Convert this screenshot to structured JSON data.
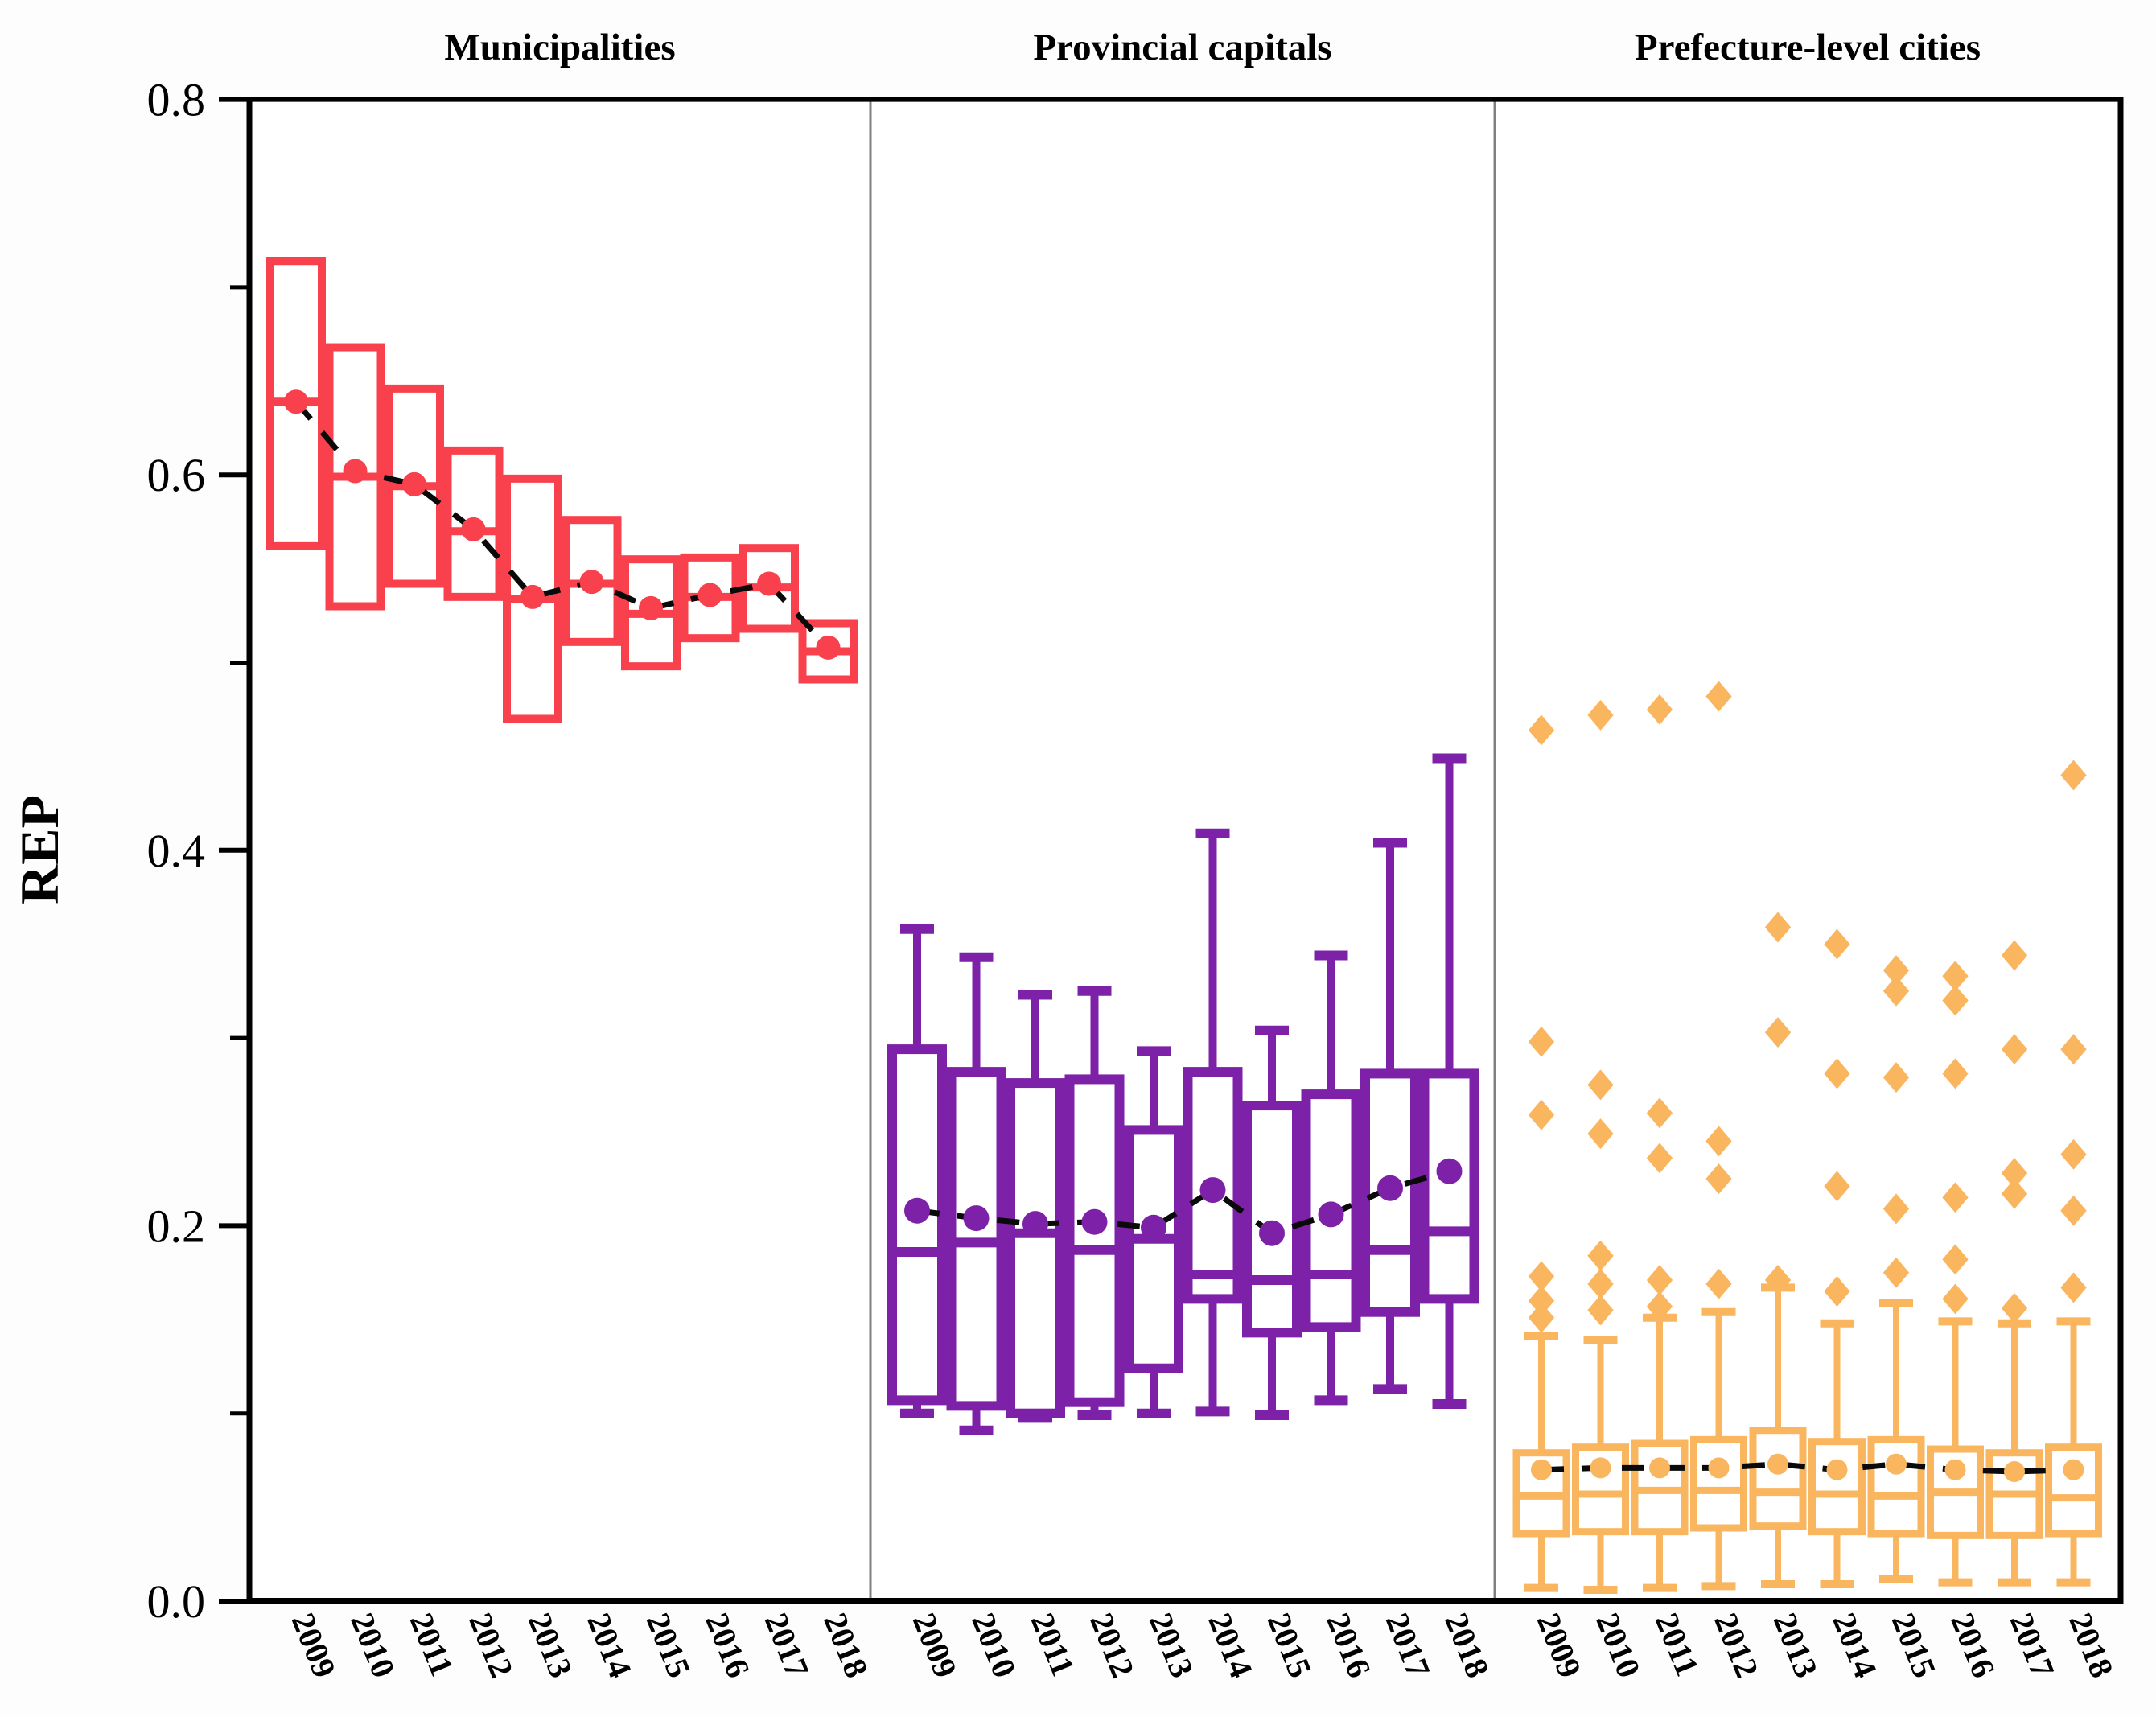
{
  "figure": {
    "ylabel": "REP",
    "panel_titles": [
      "Municipalities",
      "Provincial capitals",
      "Prefecture-level cities"
    ]
  },
  "chart_data": {
    "type": "boxplot",
    "title": "",
    "xlabel": "",
    "ylabel": "REP",
    "ylim": [
      0.0,
      0.8
    ],
    "y_major_ticks": [
      "0.0",
      "0.2",
      "0.4",
      "0.6",
      "0.8"
    ],
    "y_minor_ticks": [
      0.1,
      0.3,
      0.5,
      0.7
    ],
    "categories": [
      "2009",
      "2010",
      "2011",
      "2012",
      "2013",
      "2014",
      "2015",
      "2016",
      "2017",
      "2018"
    ],
    "legend_position": "none",
    "grid": false,
    "mean_connector_style": "dashed-black-line-through-mean-dots",
    "colors": {
      "municipalities": "#f8414d",
      "provincial_capitals": "#7d22a8",
      "prefecture_level_cities": "#fab55f",
      "connector": "#0a0a0a",
      "axis": "#000000",
      "panel_divider": "#808080"
    },
    "panels": [
      {
        "title": "Municipalities",
        "color": "#f8414d",
        "has_whiskers": false,
        "series": [
          {
            "year": "2009",
            "q1": 0.562,
            "median": 0.639,
            "mean": 0.639,
            "q3": 0.714,
            "outliers": []
          },
          {
            "year": "2010",
            "q1": 0.53,
            "median": 0.599,
            "mean": 0.602,
            "q3": 0.668,
            "outliers": []
          },
          {
            "year": "2011",
            "q1": 0.542,
            "median": 0.594,
            "mean": 0.595,
            "q3": 0.646,
            "outliers": []
          },
          {
            "year": "2012",
            "q1": 0.535,
            "median": 0.57,
            "mean": 0.571,
            "q3": 0.613,
            "outliers": []
          },
          {
            "year": "2013",
            "q1": 0.47,
            "median": 0.534,
            "mean": 0.535,
            "q3": 0.598,
            "outliers": []
          },
          {
            "year": "2014",
            "q1": 0.511,
            "median": 0.542,
            "mean": 0.543,
            "q3": 0.576,
            "outliers": []
          },
          {
            "year": "2015",
            "q1": 0.498,
            "median": 0.526,
            "mean": 0.529,
            "q3": 0.555,
            "outliers": []
          },
          {
            "year": "2016",
            "q1": 0.513,
            "median": 0.535,
            "mean": 0.536,
            "q3": 0.556,
            "outliers": []
          },
          {
            "year": "2017",
            "q1": 0.518,
            "median": 0.54,
            "mean": 0.542,
            "q3": 0.561,
            "outliers": []
          },
          {
            "year": "2018",
            "q1": 0.491,
            "median": 0.506,
            "mean": 0.508,
            "q3": 0.521,
            "outliers": []
          }
        ]
      },
      {
        "title": "Provincial capitals",
        "color": "#7d22a8",
        "has_whiskers": true,
        "series": [
          {
            "year": "2009",
            "low": 0.1,
            "q1": 0.107,
            "median": 0.186,
            "mean": 0.208,
            "q3": 0.294,
            "high": 0.358,
            "outliers": []
          },
          {
            "year": "2010",
            "low": 0.091,
            "q1": 0.104,
            "median": 0.191,
            "mean": 0.204,
            "q3": 0.282,
            "high": 0.343,
            "outliers": []
          },
          {
            "year": "2011",
            "low": 0.098,
            "q1": 0.1,
            "median": 0.196,
            "mean": 0.201,
            "q3": 0.276,
            "high": 0.323,
            "outliers": []
          },
          {
            "year": "2012",
            "low": 0.099,
            "q1": 0.106,
            "median": 0.187,
            "mean": 0.202,
            "q3": 0.278,
            "high": 0.325,
            "outliers": []
          },
          {
            "year": "2013",
            "low": 0.1,
            "q1": 0.124,
            "median": 0.193,
            "mean": 0.199,
            "q3": 0.251,
            "high": 0.293,
            "outliers": []
          },
          {
            "year": "2014",
            "low": 0.101,
            "q1": 0.161,
            "median": 0.174,
            "mean": 0.219,
            "q3": 0.282,
            "high": 0.409,
            "outliers": []
          },
          {
            "year": "2015",
            "low": 0.099,
            "q1": 0.143,
            "median": 0.171,
            "mean": 0.196,
            "q3": 0.264,
            "high": 0.304,
            "outliers": []
          },
          {
            "year": "2016",
            "low": 0.107,
            "q1": 0.146,
            "median": 0.174,
            "mean": 0.206,
            "q3": 0.27,
            "high": 0.344,
            "outliers": []
          },
          {
            "year": "2017",
            "low": 0.113,
            "q1": 0.154,
            "median": 0.187,
            "mean": 0.22,
            "q3": 0.281,
            "high": 0.404,
            "outliers": []
          },
          {
            "year": "2018",
            "low": 0.105,
            "q1": 0.161,
            "median": 0.197,
            "mean": 0.229,
            "q3": 0.281,
            "high": 0.449,
            "outliers": []
          }
        ]
      },
      {
        "title": "Prefecture-level cities",
        "color": "#fab55f",
        "has_whiskers": true,
        "series": [
          {
            "year": "2009",
            "low": 0.007,
            "q1": 0.036,
            "median": 0.056,
            "mean": 0.07,
            "q3": 0.079,
            "high": 0.141,
            "outliers": [
              0.464,
              0.298,
              0.259,
              0.173,
              0.16,
              0.151
            ]
          },
          {
            "year": "2010",
            "low": 0.006,
            "q1": 0.037,
            "median": 0.057,
            "mean": 0.071,
            "q3": 0.082,
            "high": 0.139,
            "outliers": [
              0.472,
              0.275,
              0.249,
              0.184,
              0.169,
              0.155
            ]
          },
          {
            "year": "2011",
            "low": 0.007,
            "q1": 0.037,
            "median": 0.059,
            "mean": 0.071,
            "q3": 0.084,
            "high": 0.151,
            "outliers": [
              0.475,
              0.26,
              0.236,
              0.171,
              0.157
            ]
          },
          {
            "year": "2012",
            "low": 0.008,
            "q1": 0.039,
            "median": 0.059,
            "mean": 0.071,
            "q3": 0.086,
            "high": 0.154,
            "outliers": [
              0.482,
              0.245,
              0.225,
              0.169
            ]
          },
          {
            "year": "2013",
            "low": 0.009,
            "q1": 0.04,
            "median": 0.058,
            "mean": 0.073,
            "q3": 0.091,
            "high": 0.167,
            "outliers": [
              0.359,
              0.303,
              0.171
            ]
          },
          {
            "year": "2014",
            "low": 0.009,
            "q1": 0.037,
            "median": 0.057,
            "mean": 0.07,
            "q3": 0.085,
            "high": 0.148,
            "outliers": [
              0.35,
              0.281,
              0.221,
              0.165
            ]
          },
          {
            "year": "2015",
            "low": 0.012,
            "q1": 0.036,
            "median": 0.056,
            "mean": 0.073,
            "q3": 0.086,
            "high": 0.159,
            "outliers": [
              0.336,
              0.325,
              0.279,
              0.209,
              0.175
            ]
          },
          {
            "year": "2016",
            "low": 0.01,
            "q1": 0.035,
            "median": 0.058,
            "mean": 0.07,
            "q3": 0.081,
            "high": 0.149,
            "outliers": [
              0.333,
              0.32,
              0.281,
              0.215,
              0.182,
              0.161
            ]
          },
          {
            "year": "2017",
            "low": 0.01,
            "q1": 0.035,
            "median": 0.057,
            "mean": 0.069,
            "q3": 0.079,
            "high": 0.148,
            "outliers": [
              0.344,
              0.294,
              0.228,
              0.217,
              0.156
            ]
          },
          {
            "year": "2018",
            "low": 0.01,
            "q1": 0.036,
            "median": 0.055,
            "mean": 0.07,
            "q3": 0.082,
            "high": 0.149,
            "outliers": [
              0.44,
              0.294,
              0.238,
              0.208,
              0.167
            ]
          }
        ]
      }
    ]
  }
}
